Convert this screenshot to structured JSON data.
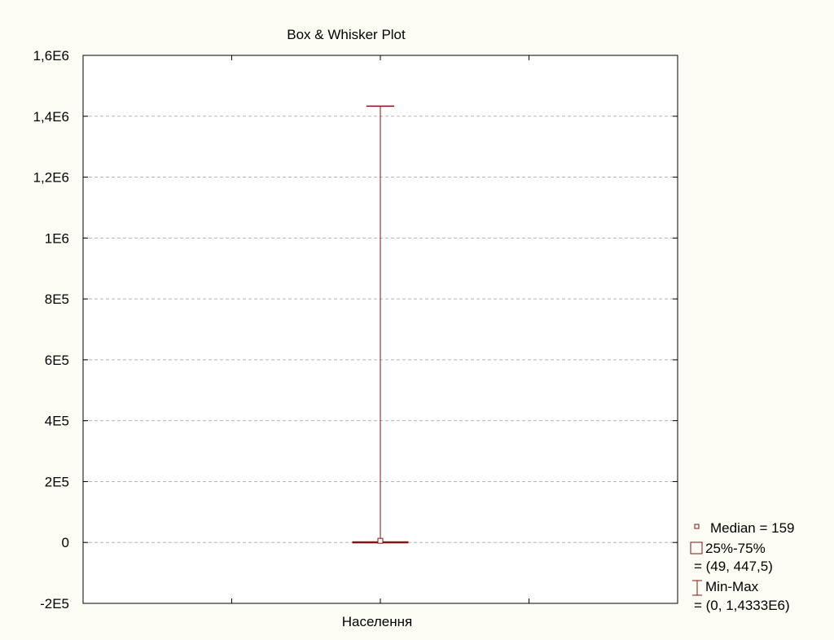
{
  "chart_data": {
    "type": "boxplot",
    "title": "Box & Whisker Plot",
    "categories": [
      "Населення"
    ],
    "ylim": [
      -200000,
      1600000
    ],
    "yticks": [
      -200000,
      0,
      200000,
      400000,
      600000,
      800000,
      1000000,
      1200000,
      1400000,
      1600000
    ],
    "ytick_labels": [
      "-2E5",
      "0",
      "2E5",
      "4E5",
      "6E5",
      "8E5",
      "1E6",
      "1,2E6",
      "1,4E6",
      "1,6E6"
    ],
    "grid": true,
    "boxes": [
      {
        "category": "Населення",
        "median": 159,
        "q1": 49,
        "q3": 447.5,
        "min": 0,
        "max": 1433300
      }
    ],
    "legend": {
      "placement": "bottom-right",
      "entries": [
        {
          "line1": "Median = 159",
          "line2": ""
        },
        {
          "line1": "25%-75%",
          "line2": "= (49, 447,5)"
        },
        {
          "line1": "Min-Max",
          "line2": "= (0, 1,4333E6)"
        }
      ]
    },
    "colors": {
      "series": "#7f1414",
      "grid": "#b4b4b4",
      "background": "#fdfdf5",
      "plot_bg": "#ffffff"
    }
  }
}
